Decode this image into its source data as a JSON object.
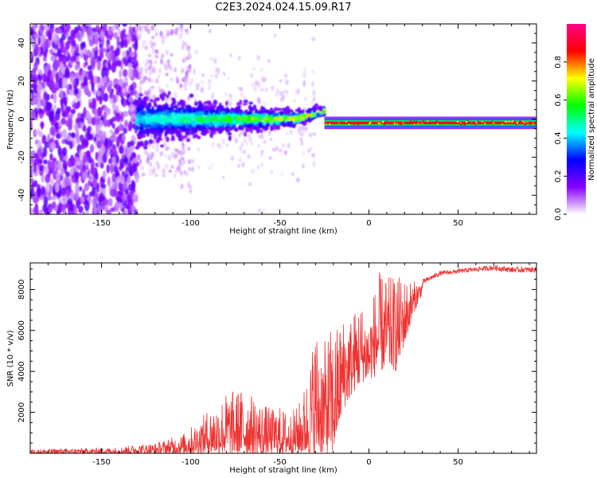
{
  "title": "C2E3.2024.024.15.09.R17",
  "colors": {
    "snr_line": "#ee3333",
    "axis": "#000000"
  },
  "chart_data": [
    {
      "type": "heatmap",
      "xlabel": "Height of straight line (km)",
      "ylabel": "Frequency (Hz)",
      "xlim": [
        -190,
        94
      ],
      "ylim": [
        -50,
        50
      ],
      "xticks": [
        -150,
        -100,
        -50,
        0,
        50
      ],
      "xtick_labels": [
        "-150",
        "-100",
        "-50",
        "0",
        "50"
      ],
      "yticks": [
        -40,
        -20,
        0,
        20,
        40
      ],
      "ytick_labels": [
        "-40",
        "-20",
        "0",
        "20",
        "40"
      ],
      "colorbar": {
        "label": "Normalized spectral amplitude",
        "range": [
          0,
          1
        ],
        "ticks": [
          0,
          0.2,
          0.4,
          0.6,
          0.8
        ],
        "tick_labels": [
          "0.0",
          "0.2",
          "0.4",
          "0.6",
          "0.8"
        ],
        "colors": [
          "#ffffff",
          "#8800ff",
          "#0000ff",
          "#00ffff",
          "#00ff00",
          "#ffff00",
          "#ff0000",
          "#ff0088"
        ]
      },
      "features": [
        {
          "name": "broadband noise",
          "x_range": [
            -190,
            -130
          ],
          "freq_range": [
            -50,
            50
          ],
          "amplitude": 0.1
        },
        {
          "name": "sparse speckle",
          "x_range": [
            -130,
            -100
          ],
          "freq_range": [
            -30,
            50
          ],
          "amplitude": 0.05
        },
        {
          "name": "carrier band",
          "x_range": [
            -130,
            -25
          ],
          "center_freq": 0,
          "half_width": [
            2,
            12
          ],
          "amplitude": 0.35
        },
        {
          "name": "strong carrier",
          "x_range": [
            -25,
            94
          ],
          "center_freq": -2,
          "amplitude": 1.0
        }
      ]
    },
    {
      "type": "line",
      "xlabel": "Height of straight line (km)",
      "ylabel": "SNR (10 * v/v)",
      "xlim": [
        -190,
        94
      ],
      "ylim": [
        0,
        9300
      ],
      "xticks": [
        -150,
        -100,
        -50,
        0,
        50
      ],
      "xtick_labels": [
        "-150",
        "-100",
        "-50",
        "0",
        "50"
      ],
      "yticks": [
        2000,
        4000,
        6000,
        8000
      ],
      "ytick_labels": [
        "2000",
        "4000",
        "6000",
        "8000"
      ],
      "series": [
        {
          "name": "SNR",
          "x": [
            -190,
            -160,
            -140,
            -130,
            -120,
            -110,
            -105,
            -100,
            -95,
            -90,
            -85,
            -80,
            -75,
            -70,
            -65,
            -60,
            -55,
            -50,
            -45,
            -40,
            -35,
            -30,
            -25,
            -22,
            -20,
            -15,
            -10,
            -5,
            0,
            5,
            10,
            15,
            20,
            25,
            30,
            35,
            40,
            50,
            60,
            70,
            80,
            94
          ],
          "envelope_max": [
            200,
            250,
            300,
            450,
            500,
            800,
            900,
            1300,
            1600,
            2200,
            2500,
            3000,
            3100,
            3200,
            2800,
            2500,
            2200,
            2300,
            2000,
            2300,
            3600,
            6300,
            5400,
            6200,
            6000,
            6700,
            6800,
            7500,
            6700,
            8900,
            8600,
            8700,
            8600,
            8400,
            8500,
            8700,
            8900,
            9000,
            9100,
            9200,
            9100,
            9100
          ],
          "envelope_min": [
            0,
            0,
            0,
            0,
            0,
            0,
            0,
            0,
            0,
            0,
            0,
            0,
            0,
            0,
            0,
            0,
            0,
            0,
            0,
            0,
            0,
            0,
            0,
            0,
            0,
            2000,
            2800,
            3400,
            3600,
            3800,
            4300,
            4000,
            5300,
            6800,
            7800,
            8200,
            8400,
            8500,
            8600,
            8600,
            8500,
            8500
          ]
        }
      ]
    }
  ]
}
